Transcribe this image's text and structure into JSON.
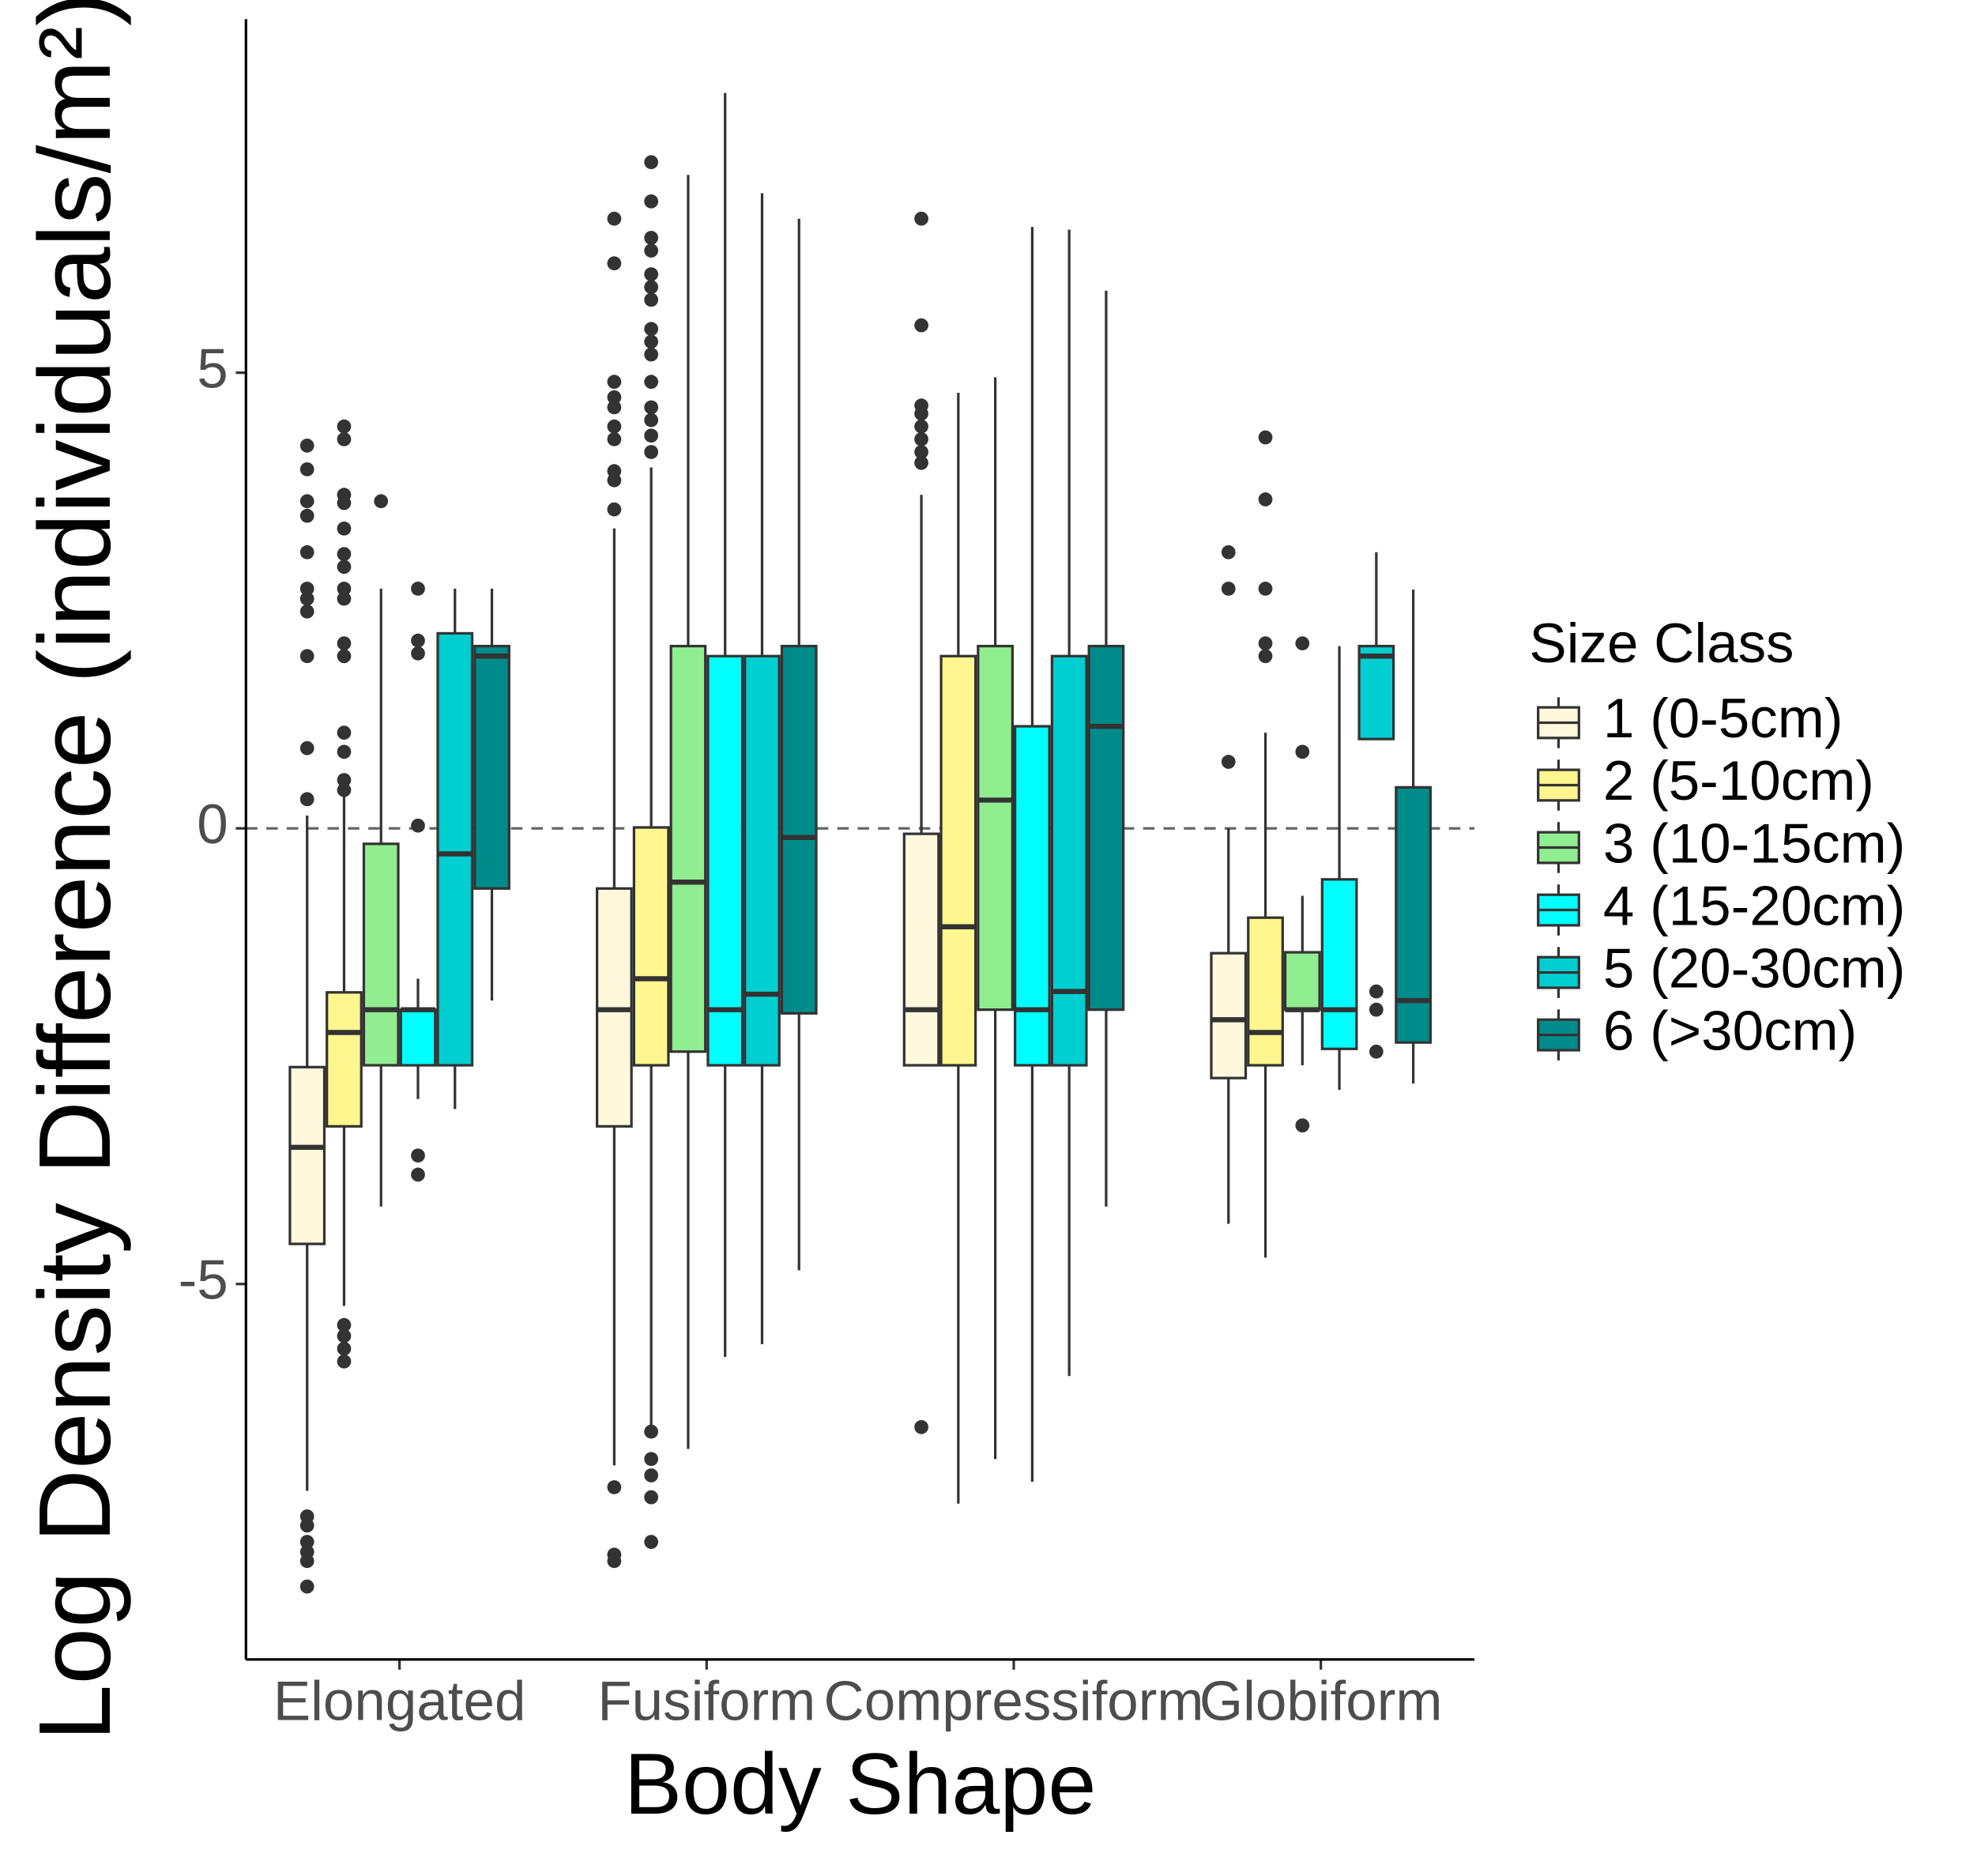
{
  "chart_data": {
    "type": "box",
    "x_label": "Body Shape",
    "y_label": "Log Density Difference (individuals/m²)",
    "legend_title": "Size Class",
    "legend_position": "right",
    "categories": [
      "Elongated",
      "Fusiform",
      "Compressiform",
      "Globiform"
    ],
    "ylim": [
      -9.12,
      8.88
    ],
    "yticks": [
      -5,
      0,
      5
    ],
    "reference_line": 0,
    "grid": false,
    "series": [
      {
        "name": "1 (0-5cm)",
        "color": "#FFF8DC",
        "values": [
          {
            "whisker_low": -7.27,
            "q1": -4.56,
            "median": -3.5,
            "q3": -2.62,
            "whisker_high": 0.14,
            "outliers": [
              4.2,
              3.94,
              3.59,
              3.43,
              3.03,
              2.63,
              2.52,
              2.38,
              1.89,
              0.88,
              0.32,
              -7.55,
              -7.65,
              -7.83,
              -7.94,
              -8.04,
              -8.32
            ]
          },
          {
            "whisker_low": -6.99,
            "q1": -3.27,
            "median": -1.99,
            "q3": -0.66,
            "whisker_high": 3.29,
            "outliers": [
              6.69,
              6.2,
              4.9,
              4.73,
              4.62,
              4.41,
              4.27,
              3.92,
              3.82,
              3.5,
              -7.23,
              -7.97,
              -8.04
            ]
          },
          {
            "whisker_low": -2.6,
            "q1": -2.6,
            "median": -1.99,
            "q3": -0.06,
            "whisker_high": 3.66,
            "outliers": [
              6.69,
              5.52,
              4.64,
              4.55,
              4.41,
              4.27,
              4.13,
              4.01,
              -6.57
            ]
          },
          {
            "whisker_low": -4.34,
            "q1": -2.74,
            "median": -2.1,
            "q3": -1.37,
            "whisker_high": 0,
            "outliers": [
              3.03,
              2.63,
              0.73
            ]
          }
        ]
      },
      {
        "name": "2 (5-10cm)",
        "color": "#FFF68F",
        "values": [
          {
            "whisker_low": -5.24,
            "q1": -3.27,
            "median": -2.24,
            "q3": -1.8,
            "whisker_high": 0.49,
            "outliers": [
              4.41,
              4.27,
              3.66,
              3.57,
              3.29,
              3.01,
              2.87,
              2.63,
              2.52,
              2.03,
              1.89,
              1.05,
              0.84,
              0.53,
              0.42,
              -5.45,
              -5.57,
              -5.71,
              -5.85
            ]
          },
          {
            "whisker_low": -6.57,
            "q1": -2.6,
            "median": -1.65,
            "q3": 0.01,
            "whisker_high": 3.96,
            "outliers": [
              7.31,
              6.88,
              6.48,
              6.34,
              6.08,
              5.94,
              5.8,
              5.48,
              5.34,
              5.2,
              4.9,
              4.62,
              4.48,
              4.31,
              4.13,
              -6.62,
              -6.92,
              -7.1,
              -7.34,
              -7.83
            ]
          },
          {
            "whisker_low": -7.41,
            "q1": -2.6,
            "median": -1.08,
            "q3": 1.89,
            "whisker_high": 4.78,
            "outliers": []
          },
          {
            "whisker_low": -4.71,
            "q1": -2.6,
            "median": -2.24,
            "q3": -0.98,
            "whisker_high": 1.05,
            "outliers": [
              4.29,
              3.61,
              2.63,
              2.03,
              1.89
            ]
          }
        ]
      },
      {
        "name": "3 (10-15cm)",
        "color": "#90EE90",
        "values": [
          {
            "whisker_low": -4.15,
            "q1": -2.6,
            "median": -1.99,
            "q3": -0.17,
            "whisker_high": 2.63,
            "outliers": [
              3.59
            ]
          },
          {
            "whisker_low": -6.81,
            "q1": -2.45,
            "median": -0.59,
            "q3": 2.0,
            "whisker_high": 7.17,
            "outliers": []
          },
          {
            "whisker_low": -6.92,
            "q1": -1.99,
            "median": 0.31,
            "q3": 2.0,
            "whisker_high": 4.95,
            "outliers": []
          },
          {
            "whisker_low": -2.6,
            "q1": -1.99,
            "median": -1.99,
            "q3": -1.36,
            "whisker_high": -0.74,
            "outliers": [
              2.03,
              0.84,
              -3.26
            ]
          }
        ]
      },
      {
        "name": "4 (15-20cm)",
        "color": "#00FFFF",
        "values": [
          {
            "whisker_low": -2.97,
            "q1": -2.6,
            "median": -1.99,
            "q3": -1.99,
            "whisker_high": -1.65,
            "outliers": [
              2.63,
              2.06,
              1.92,
              0.03,
              -3.59,
              -3.8
            ]
          },
          {
            "whisker_low": -5.8,
            "q1": -2.6,
            "median": -1.99,
            "q3": 1.89,
            "whisker_high": 8.07,
            "outliers": []
          },
          {
            "whisker_low": -7.17,
            "q1": -2.6,
            "median": -1.99,
            "q3": 1.12,
            "whisker_high": 6.6,
            "outliers": []
          },
          {
            "whisker_low": -2.87,
            "q1": -2.42,
            "median": -1.99,
            "q3": -0.56,
            "whisker_high": 2.0,
            "outliers": []
          }
        ]
      },
      {
        "name": "5 (20-30cm)",
        "color": "#00CED1",
        "values": [
          {
            "whisker_low": -3.08,
            "q1": -2.6,
            "median": -0.28,
            "q3": 2.14,
            "whisker_high": 2.63,
            "outliers": []
          },
          {
            "whisker_low": -5.66,
            "q1": -2.6,
            "median": -1.82,
            "q3": 1.89,
            "whisker_high": 6.97,
            "outliers": []
          },
          {
            "whisker_low": -6.01,
            "q1": -2.6,
            "median": -1.79,
            "q3": 1.89,
            "whisker_high": 6.57,
            "outliers": []
          },
          {
            "whisker_low": 0.98,
            "q1": 0.98,
            "median": 1.89,
            "q3": 2.0,
            "whisker_high": 3.03,
            "outliers": [
              -1.79,
              -1.99,
              -2.45
            ]
          }
        ]
      },
      {
        "name": "6 (>30cm)",
        "color": "#008B8B",
        "values": [
          {
            "whisker_low": -1.89,
            "q1": -0.66,
            "median": 1.89,
            "q3": 2.0,
            "whisker_high": 2.63,
            "outliers": []
          },
          {
            "whisker_low": -4.85,
            "q1": -2.03,
            "median": -0.1,
            "q3": 2.0,
            "whisker_high": 6.69,
            "outliers": []
          },
          {
            "whisker_low": -4.15,
            "q1": -1.99,
            "median": 1.12,
            "q3": 2.0,
            "whisker_high": 5.9,
            "outliers": []
          },
          {
            "whisker_low": -2.8,
            "q1": -2.35,
            "median": -1.89,
            "q3": 0.45,
            "whisker_high": 2.62,
            "outliers": []
          }
        ]
      }
    ]
  }
}
